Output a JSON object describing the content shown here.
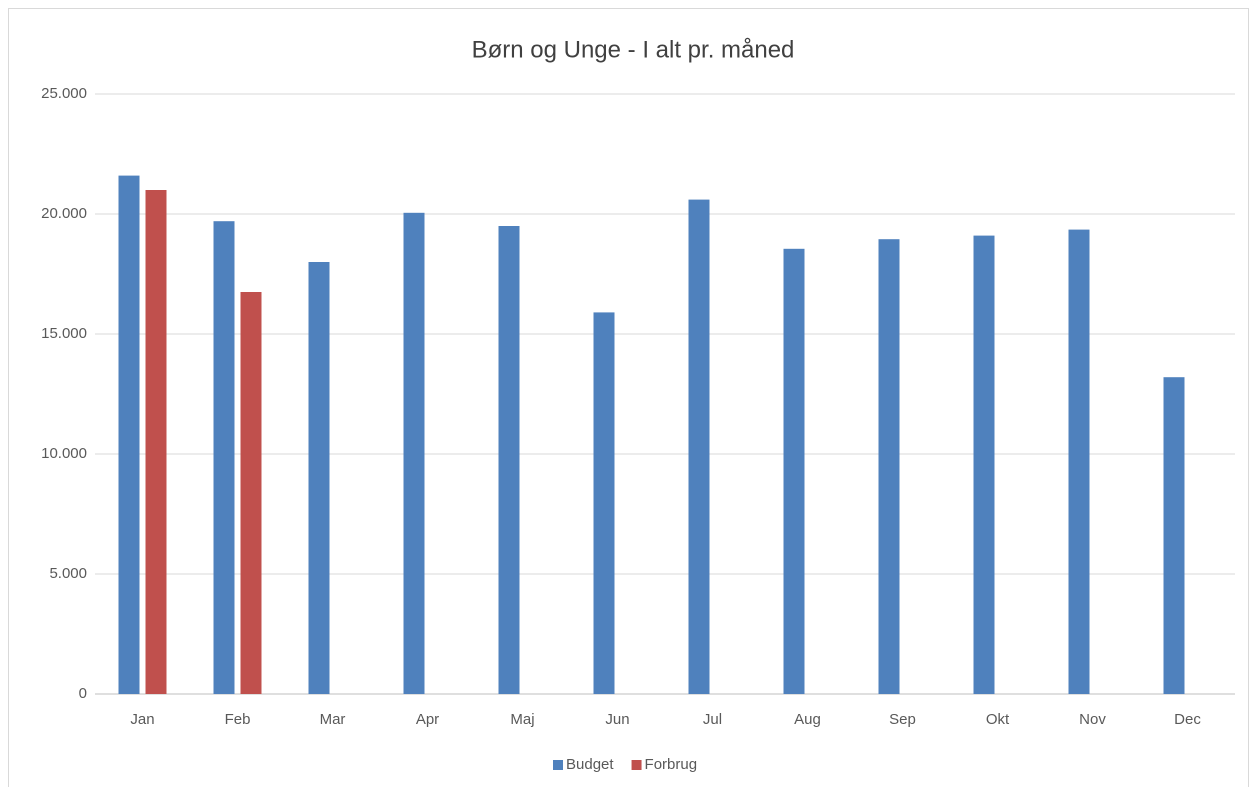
{
  "chart_data": {
    "type": "bar",
    "title": "Børn og Unge - I alt pr. måned",
    "categories": [
      "Jan",
      "Feb",
      "Mar",
      "Apr",
      "Maj",
      "Jun",
      "Jul",
      "Aug",
      "Sep",
      "Okt",
      "Nov",
      "Dec"
    ],
    "series": [
      {
        "name": "Budget",
        "color": "#4f81bd",
        "values": [
          21600,
          19700,
          18000,
          20050,
          19500,
          15900,
          20600,
          18550,
          18950,
          19100,
          19350,
          13200
        ]
      },
      {
        "name": "Forbrug",
        "color": "#c0504d",
        "values": [
          21000,
          16750,
          null,
          null,
          null,
          null,
          null,
          null,
          null,
          null,
          null,
          null
        ]
      }
    ],
    "ylim": [
      0,
      25000
    ],
    "yticks": [
      0,
      {
        "value": 5000,
        "label": "5.000"
      },
      {
        "value": 10000,
        "label": "10.000"
      },
      {
        "value": 15000,
        "label": "15.000"
      },
      {
        "value": 20000,
        "label": "20.000"
      },
      {
        "value": 25000,
        "label": "25.000"
      }
    ],
    "grid": true,
    "legend": "bottom"
  }
}
